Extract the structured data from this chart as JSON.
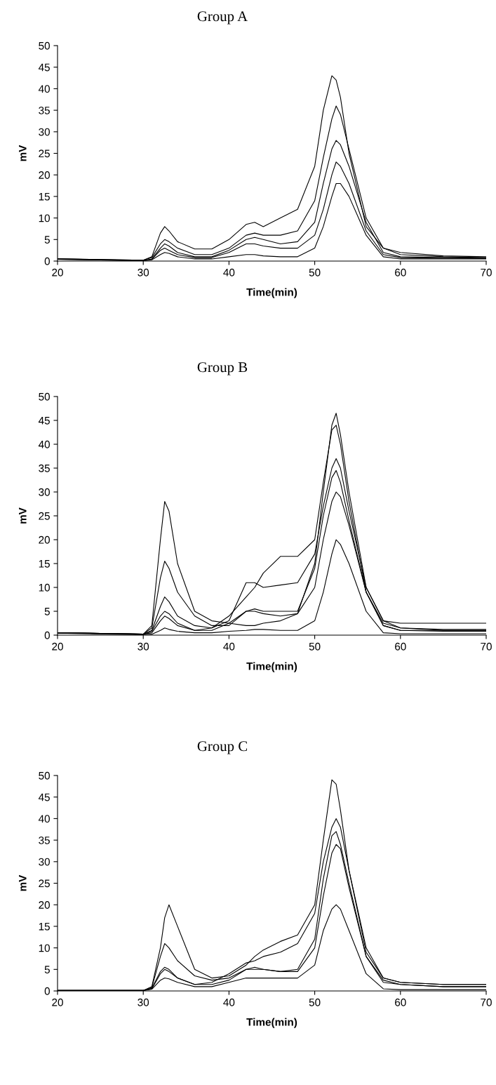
{
  "chart_data": [
    {
      "type": "line",
      "title": "Group A",
      "xlabel": "Time(min)",
      "ylabel": "mV",
      "xlim": [
        20,
        70
      ],
      "ylim": [
        0,
        50
      ],
      "xticks": [
        20,
        30,
        40,
        50,
        60,
        70
      ],
      "yticks": [
        0,
        5,
        10,
        15,
        20,
        25,
        30,
        35,
        40,
        45,
        50
      ],
      "grid": false,
      "x": [
        20,
        30,
        31,
        32,
        32.5,
        33,
        34,
        36,
        38,
        40,
        42,
        43,
        44,
        46,
        48,
        50,
        51,
        52,
        52.5,
        53,
        54,
        56,
        58,
        60,
        65,
        70
      ],
      "series": [
        {
          "color": "#000000",
          "values": [
            0.5,
            0.2,
            1,
            6.5,
            8,
            7,
            4.5,
            2.8,
            2.8,
            5,
            8.5,
            9,
            8,
            10,
            12,
            22,
            35,
            43,
            42,
            38,
            25,
            8,
            3,
            2,
            1.2,
            1
          ]
        },
        {
          "color": "#000000",
          "values": [
            0.5,
            0.2,
            0.8,
            4,
            5,
            4.5,
            3,
            1.5,
            1.5,
            3,
            6,
            6.5,
            6,
            6,
            7,
            14,
            24,
            33,
            36,
            34,
            26,
            10,
            3,
            1.5,
            1,
            0.8
          ]
        },
        {
          "color": "#000000",
          "values": [
            0.5,
            0.1,
            0.5,
            3,
            4,
            3.5,
            2,
            1,
            1,
            2.5,
            5,
            5.5,
            5,
            4,
            4.5,
            9,
            18,
            26,
            28,
            27,
            22,
            9,
            2,
            1,
            0.8,
            0.7
          ]
        },
        {
          "color": "#000000",
          "values": [
            0.4,
            0.1,
            0.4,
            2.5,
            3,
            2.5,
            1.5,
            0.8,
            0.8,
            2,
            4,
            4,
            3.5,
            3,
            3,
            6,
            12,
            20,
            23,
            22,
            18,
            7,
            1.5,
            0.8,
            0.7,
            0.6
          ]
        },
        {
          "color": "#000000",
          "values": [
            0.4,
            0.1,
            0.3,
            1.5,
            2,
            1.8,
            1,
            0.5,
            0.5,
            1,
            1.5,
            1.5,
            1.2,
            1,
            1,
            3,
            8,
            15,
            18,
            18,
            15,
            6,
            1,
            0.5,
            0.5,
            0.5
          ]
        }
      ]
    },
    {
      "type": "line",
      "title": "Group B",
      "xlabel": "Time(min)",
      "ylabel": "mV",
      "xlim": [
        20,
        70
      ],
      "ylim": [
        0,
        50
      ],
      "xticks": [
        20,
        30,
        40,
        50,
        60,
        70
      ],
      "yticks": [
        0,
        5,
        10,
        15,
        20,
        25,
        30,
        35,
        40,
        45,
        50
      ],
      "grid": false,
      "x": [
        20,
        30,
        31,
        32,
        32.5,
        33,
        34,
        36,
        38,
        40,
        42,
        43,
        44,
        46,
        48,
        50,
        51,
        52,
        52.5,
        53,
        54,
        56,
        58,
        60,
        65,
        70
      ],
      "series": [
        {
          "color": "#000000",
          "values": [
            0.5,
            0.2,
            2,
            20,
            28,
            26,
            15,
            5,
            3,
            2.5,
            2,
            2,
            2.5,
            3,
            4.5,
            15,
            30,
            44,
            46.5,
            42,
            30,
            10,
            3,
            2.5,
            2.5,
            2.5
          ]
        },
        {
          "color": "#000000",
          "values": [
            0.5,
            0.2,
            1.5,
            12,
            15.5,
            14,
            9,
            4,
            2,
            2,
            5,
            5.5,
            5,
            5,
            5,
            14,
            25,
            33,
            34.5,
            32,
            24,
            9,
            2,
            1,
            1,
            1
          ]
        },
        {
          "color": "#000000",
          "values": [
            0.5,
            0.2,
            1,
            6,
            8,
            7,
            4,
            2,
            1.5,
            3,
            11,
            11,
            10,
            10.5,
            11,
            17,
            27,
            35,
            37,
            35,
            26,
            10,
            3,
            1.5,
            1.2,
            1.2
          ]
        },
        {
          "color": "#000000",
          "values": [
            0.5,
            0.2,
            0.5,
            3,
            4,
            3.5,
            2,
            1,
            1.5,
            4,
            8,
            10,
            13,
            16.5,
            16.5,
            20,
            32,
            43,
            44,
            40,
            28,
            9,
            2,
            1,
            0.8,
            0.8
          ]
        },
        {
          "color": "#000000",
          "values": [
            0.5,
            0.2,
            0.8,
            4,
            5,
            4.5,
            2.5,
            1,
            1,
            2.5,
            5,
            5,
            4.5,
            4,
            4.5,
            10,
            20,
            28,
            30,
            29,
            23,
            9,
            2.5,
            1.5,
            1,
            1
          ]
        },
        {
          "color": "#000000",
          "values": [
            0.4,
            0.1,
            0.2,
            1,
            1.5,
            1.2,
            0.8,
            0.5,
            0.5,
            0.8,
            1,
            1.2,
            1.2,
            1,
            1,
            3,
            9,
            17,
            20,
            19,
            15,
            5,
            0.5,
            0.3,
            0.3,
            0.3
          ]
        }
      ]
    },
    {
      "type": "line",
      "title": "Group C",
      "xlabel": "Time(min)",
      "ylabel": "mV",
      "xlim": [
        20,
        70
      ],
      "ylim": [
        0,
        50
      ],
      "xticks": [
        20,
        30,
        40,
        50,
        60,
        70
      ],
      "yticks": [
        0,
        5,
        10,
        15,
        20,
        25,
        30,
        35,
        40,
        45,
        50
      ],
      "grid": false,
      "x": [
        20,
        30,
        31,
        32,
        32.5,
        33,
        34,
        36,
        38,
        40,
        42,
        43,
        44,
        46,
        48,
        50,
        51,
        52,
        52.5,
        53,
        54,
        56,
        58,
        60,
        65,
        70
      ],
      "series": [
        {
          "color": "#000000",
          "values": [
            0.1,
            0.1,
            1,
            10,
            17,
            20,
            15,
            5,
            3,
            3.5,
            6,
            8,
            9.5,
            11.5,
            13,
            20,
            35,
            49,
            48,
            42,
            28,
            9,
            3,
            2,
            1.5,
            1.5
          ]
        },
        {
          "color": "#000000",
          "values": [
            0.1,
            0.1,
            0.6,
            4.5,
            5.5,
            5,
            3,
            1.5,
            2,
            4,
            6.5,
            7,
            8,
            9,
            11,
            18,
            30,
            38,
            40,
            38,
            28,
            10,
            3,
            2,
            1.5,
            1.5
          ]
        },
        {
          "color": "#000000",
          "values": [
            0.1,
            0.1,
            0.8,
            8,
            11,
            10,
            7,
            3.5,
            2.5,
            3,
            5,
            5.5,
            5,
            4.5,
            5,
            12,
            26,
            36,
            37,
            34,
            25,
            8,
            2.5,
            1.5,
            1,
            1
          ]
        },
        {
          "color": "#000000",
          "values": [
            0.1,
            0.1,
            0.5,
            4,
            5,
            4.5,
            3,
            1.5,
            1.5,
            2.5,
            5,
            5,
            5,
            4.5,
            4.5,
            10,
            22,
            32,
            34,
            33,
            24,
            8,
            2,
            1.5,
            1,
            1
          ]
        },
        {
          "color": "#000000",
          "values": [
            0.1,
            0.1,
            0.4,
            2.5,
            3,
            2.8,
            2,
            1,
            1,
            2,
            3,
            3,
            3,
            3,
            3,
            6,
            14,
            19,
            20,
            19,
            14,
            4,
            0.5,
            0.3,
            0.3,
            0.3
          ]
        }
      ]
    }
  ]
}
